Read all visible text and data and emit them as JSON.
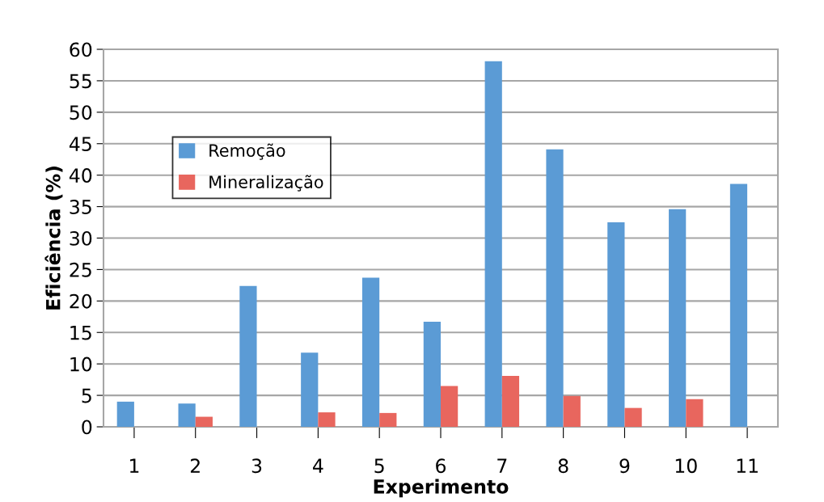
{
  "chart_data": {
    "type": "bar",
    "xlabel": "Experimento",
    "ylabel": "Eficiência (%)",
    "categories": [
      "1",
      "2",
      "3",
      "4",
      "5",
      "6",
      "7",
      "8",
      "9",
      "10",
      "11"
    ],
    "series": [
      {
        "name": "Remoção",
        "color": "#5b9bd5",
        "values": [
          4.0,
          3.7,
          22.4,
          11.8,
          23.7,
          16.7,
          58.1,
          44.1,
          32.5,
          34.6,
          38.6
        ]
      },
      {
        "name": "Mineralização",
        "color": "#e8665e",
        "values": [
          0,
          1.6,
          0,
          2.3,
          2.2,
          6.5,
          8.1,
          4.9,
          3.0,
          4.4,
          0
        ]
      }
    ],
    "ylim": [
      0,
      60
    ],
    "yticks": [
      0,
      5,
      10,
      15,
      20,
      25,
      30,
      35,
      40,
      45,
      50,
      55,
      60
    ],
    "grid": "y",
    "legend": "upper left"
  }
}
